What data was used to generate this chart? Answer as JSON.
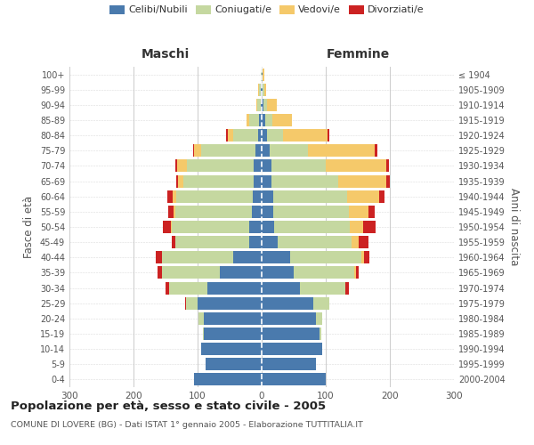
{
  "age_groups": [
    "0-4",
    "5-9",
    "10-14",
    "15-19",
    "20-24",
    "25-29",
    "30-34",
    "35-39",
    "40-44",
    "45-49",
    "50-54",
    "55-59",
    "60-64",
    "65-69",
    "70-74",
    "75-79",
    "80-84",
    "85-89",
    "90-94",
    "95-99",
    "100+"
  ],
  "birth_years": [
    "2000-2004",
    "1995-1999",
    "1990-1994",
    "1985-1989",
    "1980-1984",
    "1975-1979",
    "1970-1974",
    "1965-1969",
    "1960-1964",
    "1955-1959",
    "1950-1954",
    "1945-1949",
    "1940-1944",
    "1935-1939",
    "1930-1934",
    "1925-1929",
    "1920-1924",
    "1915-1919",
    "1910-1914",
    "1905-1909",
    "≤ 1904"
  ],
  "males_celibi": [
    105,
    88,
    95,
    90,
    90,
    100,
    85,
    65,
    45,
    20,
    20,
    15,
    14,
    12,
    12,
    10,
    5,
    4,
    2,
    1,
    0
  ],
  "males_coniugati": [
    0,
    0,
    0,
    2,
    8,
    18,
    60,
    90,
    110,
    115,
    120,
    120,
    120,
    110,
    105,
    85,
    40,
    15,
    5,
    3,
    2
  ],
  "males_vedovi": [
    0,
    0,
    0,
    0,
    0,
    0,
    0,
    0,
    0,
    0,
    2,
    3,
    5,
    8,
    15,
    10,
    8,
    5,
    2,
    1,
    0
  ],
  "males_divorziati": [
    0,
    0,
    0,
    0,
    1,
    2,
    5,
    8,
    10,
    5,
    12,
    8,
    8,
    3,
    3,
    2,
    2,
    0,
    0,
    0,
    0
  ],
  "females_nubili": [
    100,
    85,
    95,
    90,
    85,
    80,
    60,
    50,
    45,
    25,
    20,
    18,
    18,
    15,
    15,
    12,
    8,
    5,
    3,
    2,
    1
  ],
  "females_coniugate": [
    0,
    0,
    0,
    3,
    10,
    25,
    70,
    95,
    110,
    115,
    118,
    118,
    115,
    105,
    85,
    60,
    25,
    12,
    5,
    2,
    1
  ],
  "females_vedove": [
    0,
    0,
    0,
    0,
    0,
    0,
    1,
    2,
    5,
    12,
    20,
    30,
    50,
    75,
    95,
    105,
    70,
    30,
    15,
    3,
    2
  ],
  "females_divorziate": [
    0,
    0,
    0,
    0,
    0,
    0,
    5,
    5,
    8,
    15,
    20,
    10,
    8,
    5,
    3,
    3,
    2,
    0,
    0,
    0,
    0
  ],
  "colors_celibi": "#4a7aad",
  "colors_coniugati": "#c5d8a0",
  "colors_vedovi": "#f5c96a",
  "colors_divorziati": "#cc2222",
  "xlim": 300,
  "title": "Popolazione per età, sesso e stato civile - 2005",
  "subtitle": "COMUNE DI LOVERE (BG) - Dati ISTAT 1° gennaio 2005 - Elaborazione TUTTITALIA.IT",
  "ylabel_left": "Fasce di età",
  "ylabel_right": "Anni di nascita",
  "label_maschi": "Maschi",
  "label_femmine": "Femmine",
  "legend_labels": [
    "Celibi/Nubili",
    "Coniugati/e",
    "Vedovi/e",
    "Divorziati/e"
  ],
  "bg_color": "#ffffff",
  "grid_color": "#cccccc"
}
